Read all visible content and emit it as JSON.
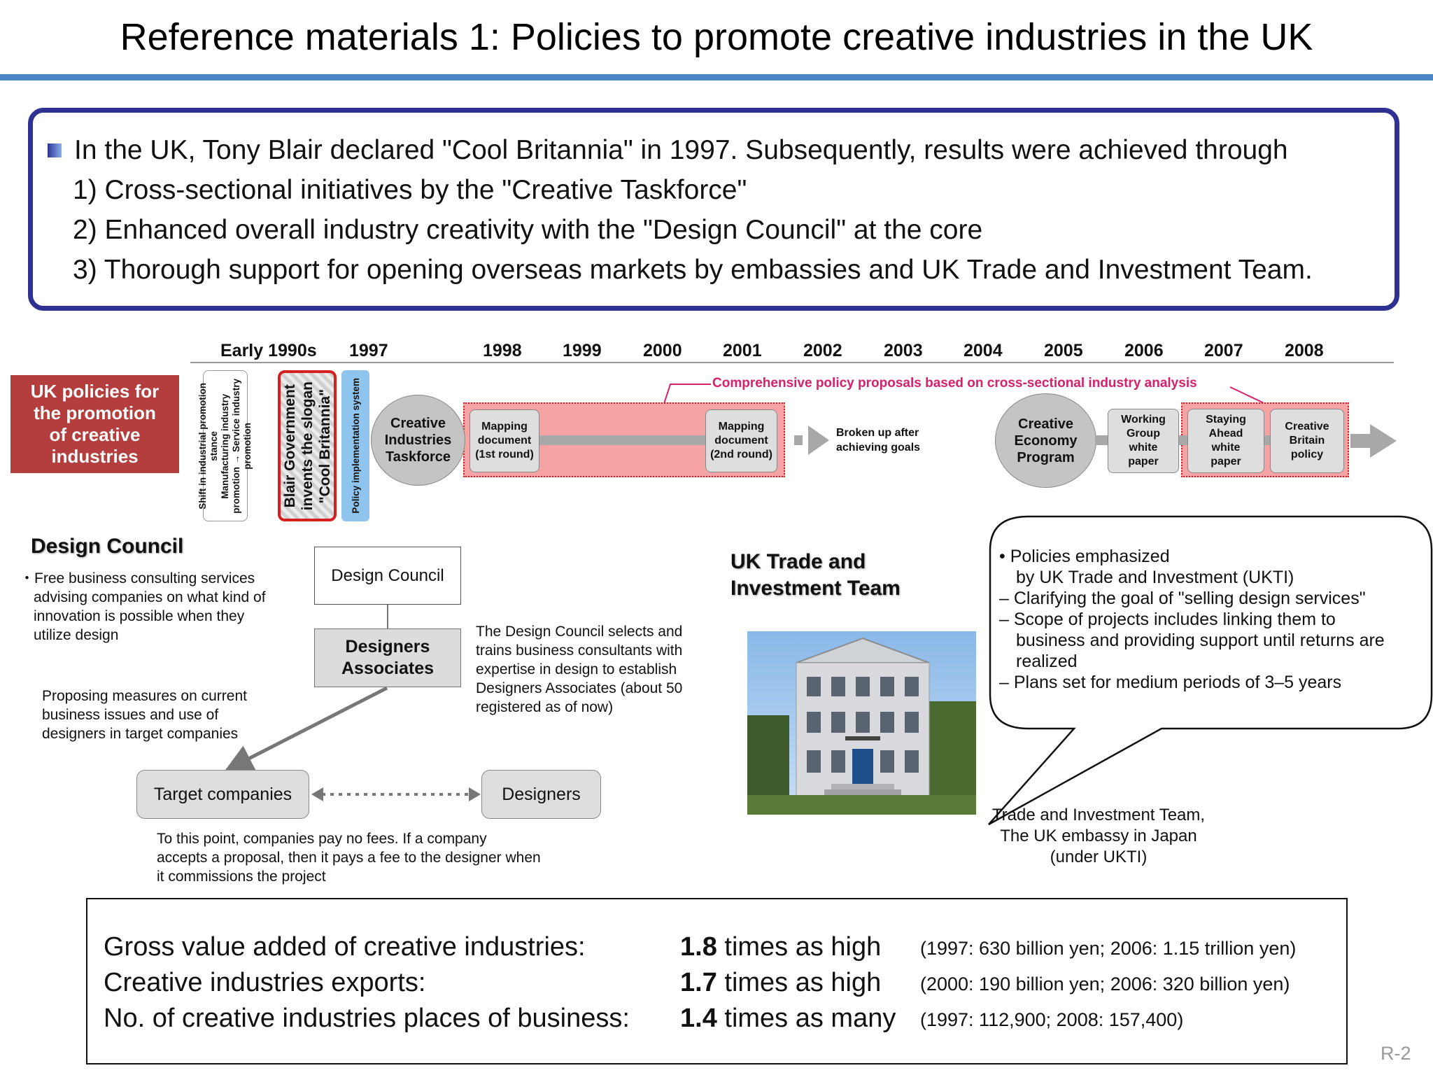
{
  "title": "Reference materials 1: Policies to promote creative industries in the UK",
  "summary": {
    "intro": "In the UK, Tony Blair declared \"Cool Britannia\" in 1997. Subsequently, results were achieved through",
    "points": [
      "1) Cross-sectional initiatives by the \"Creative Taskforce\"",
      "2) Enhanced overall industry creativity with the \"Design Council\" at the core",
      "3) Thorough support for opening overseas markets by embassies and UK Trade and Investment Team."
    ]
  },
  "timeline": {
    "row_label": "UK policies for the promotion of creative industries",
    "years": [
      "Early 1990s",
      "1997",
      "1998",
      "1999",
      "2000",
      "2001",
      "2002",
      "2003",
      "2004",
      "2005",
      "2006",
      "2007",
      "2008"
    ],
    "vertical_boxes": [
      [
        "Shift in industrial promotion",
        "stance",
        "Manufacturing industry",
        "promotion → Service industry",
        "promotion"
      ],
      [
        "Blair Government",
        "invents the slogan",
        "\"Cool Britannia\""
      ],
      [
        "Policy implementation system"
      ]
    ],
    "comprehensive_label": "Comprehensive policy proposals based on cross-sectional industry analysis",
    "creative_taskforce": [
      "Creative",
      "Industries",
      "Taskforce"
    ],
    "mapping1": [
      "Mapping",
      "document",
      "(1st round)"
    ],
    "mapping2": [
      "Mapping",
      "document",
      "(2nd round)"
    ],
    "broken_up": [
      "Broken up after",
      "achieving goals"
    ],
    "creative_economy": [
      "Creative",
      "Economy",
      "Program"
    ],
    "working_group": [
      "Working",
      "Group",
      "white",
      "paper"
    ],
    "staying_ahead": [
      "Staying",
      "Ahead",
      "white",
      "paper"
    ],
    "creative_britain": [
      "Creative",
      "Britain",
      "policy"
    ]
  },
  "design_council": {
    "title": "Design Council",
    "desc": [
      "・Free business consulting services",
      "advising companies on what kind of",
      "innovation is possible when they",
      "utilize design"
    ],
    "box_dc": "Design Council",
    "box_da": [
      "Designers",
      "Associates"
    ],
    "da_text": [
      "The Design Council selects and",
      "trains business consultants with",
      "expertise in design to establish",
      "Designers Associates (about 50",
      "registered as of now)"
    ],
    "proposal_text": [
      "Proposing measures on current",
      "business issues and use of",
      "designers in target companies"
    ],
    "target_companies": "Target companies",
    "designers": "Designers",
    "fee_text": [
      "To this point, companies pay no fees. If a company",
      "accepts a proposal, then it pays a fee to the designer when",
      "it commissions the project"
    ]
  },
  "ukti": {
    "title": [
      "UK Trade and",
      "Investment Team"
    ],
    "callout": [
      "• Policies emphasized",
      "by UK Trade and  Investment (UKTI)",
      "– Clarifying the goal of \"selling design services\"",
      "– Scope of projects includes linking them to",
      "business and providing support until returns are",
      "realized",
      "– Plans set for medium periods of 3–5 years"
    ],
    "caption": [
      "Trade and Investment Team,",
      "The UK embassy in Japan",
      "(under UKTI)"
    ]
  },
  "stats": [
    {
      "label": "Gross value added of creative industries:",
      "value": "1.8",
      "unit": " times as high",
      "note": "(1997: 630 billion yen; 2006: 1.15 trillion yen)"
    },
    {
      "label": "Creative industries exports:",
      "value": "1.7",
      "unit": " times as high",
      "note": "(2000: 190 billion yen; 2006: 320 billion yen)"
    },
    {
      "label": "No. of creative industries places of business:",
      "value": "1.4",
      "unit": " times as many",
      "note": "(1997: 112,900; 2008: 157,400)"
    }
  ],
  "page_number": "R-2"
}
